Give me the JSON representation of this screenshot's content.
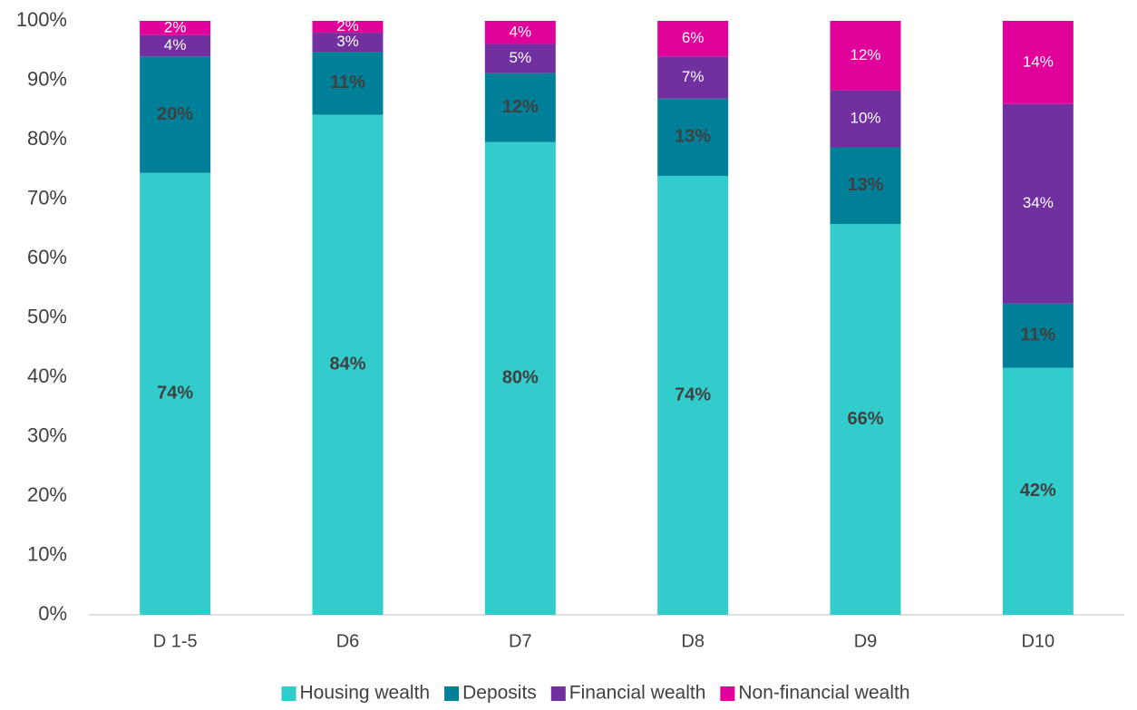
{
  "chart_data": {
    "type": "stacked_bar",
    "categories": [
      "D 1-5",
      "D6",
      "D7",
      "D8",
      "D9",
      "D10"
    ],
    "series": [
      {
        "name": "Housing wealth",
        "color": "#33cccc",
        "label_color": "#404040",
        "label_bold": true,
        "values": [
          74.4,
          84.2,
          79.6,
          73.9,
          65.8,
          41.6
        ],
        "value_labels": [
          "74%",
          "84%",
          "80%",
          "74%",
          "66%",
          "42%"
        ]
      },
      {
        "name": "Deposits",
        "color": "#007f99",
        "label_color": "#404040",
        "label_bold": true,
        "values": [
          19.6,
          10.6,
          11.6,
          13.0,
          12.9,
          10.8
        ],
        "value_labels": [
          "20%",
          "11%",
          "12%",
          "13%",
          "13%",
          "11%"
        ]
      },
      {
        "name": "Financial wealth",
        "color": "#7030a0",
        "label_color": "#ffffff",
        "label_bold": false,
        "values": [
          3.6,
          3.2,
          4.9,
          7.1,
          9.6,
          33.6
        ],
        "value_labels": [
          "4%",
          "3%",
          "5%",
          "7%",
          "10%",
          "34%"
        ]
      },
      {
        "name": "Non-financial wealth",
        "color": "#e0009a",
        "label_color": "#ffffff",
        "label_bold": false,
        "values": [
          2.4,
          2.0,
          3.9,
          6.0,
          11.7,
          14.0
        ],
        "value_labels": [
          "2%",
          "2%",
          "4%",
          "6%",
          "12%",
          "14%"
        ]
      }
    ],
    "ylim": [
      0,
      100
    ],
    "yticks": [
      {
        "value": 0,
        "label": "0%"
      },
      {
        "value": 10,
        "label": "10%"
      },
      {
        "value": 20,
        "label": "20%"
      },
      {
        "value": 30,
        "label": "30%"
      },
      {
        "value": 40,
        "label": "40%"
      },
      {
        "value": 50,
        "label": "50%"
      },
      {
        "value": 60,
        "label": "60%"
      },
      {
        "value": 70,
        "label": "70%"
      },
      {
        "value": 80,
        "label": "80%"
      },
      {
        "value": 90,
        "label": "90%"
      },
      {
        "value": 100,
        "label": "100%"
      }
    ],
    "grid": false,
    "legend": "bottom"
  }
}
